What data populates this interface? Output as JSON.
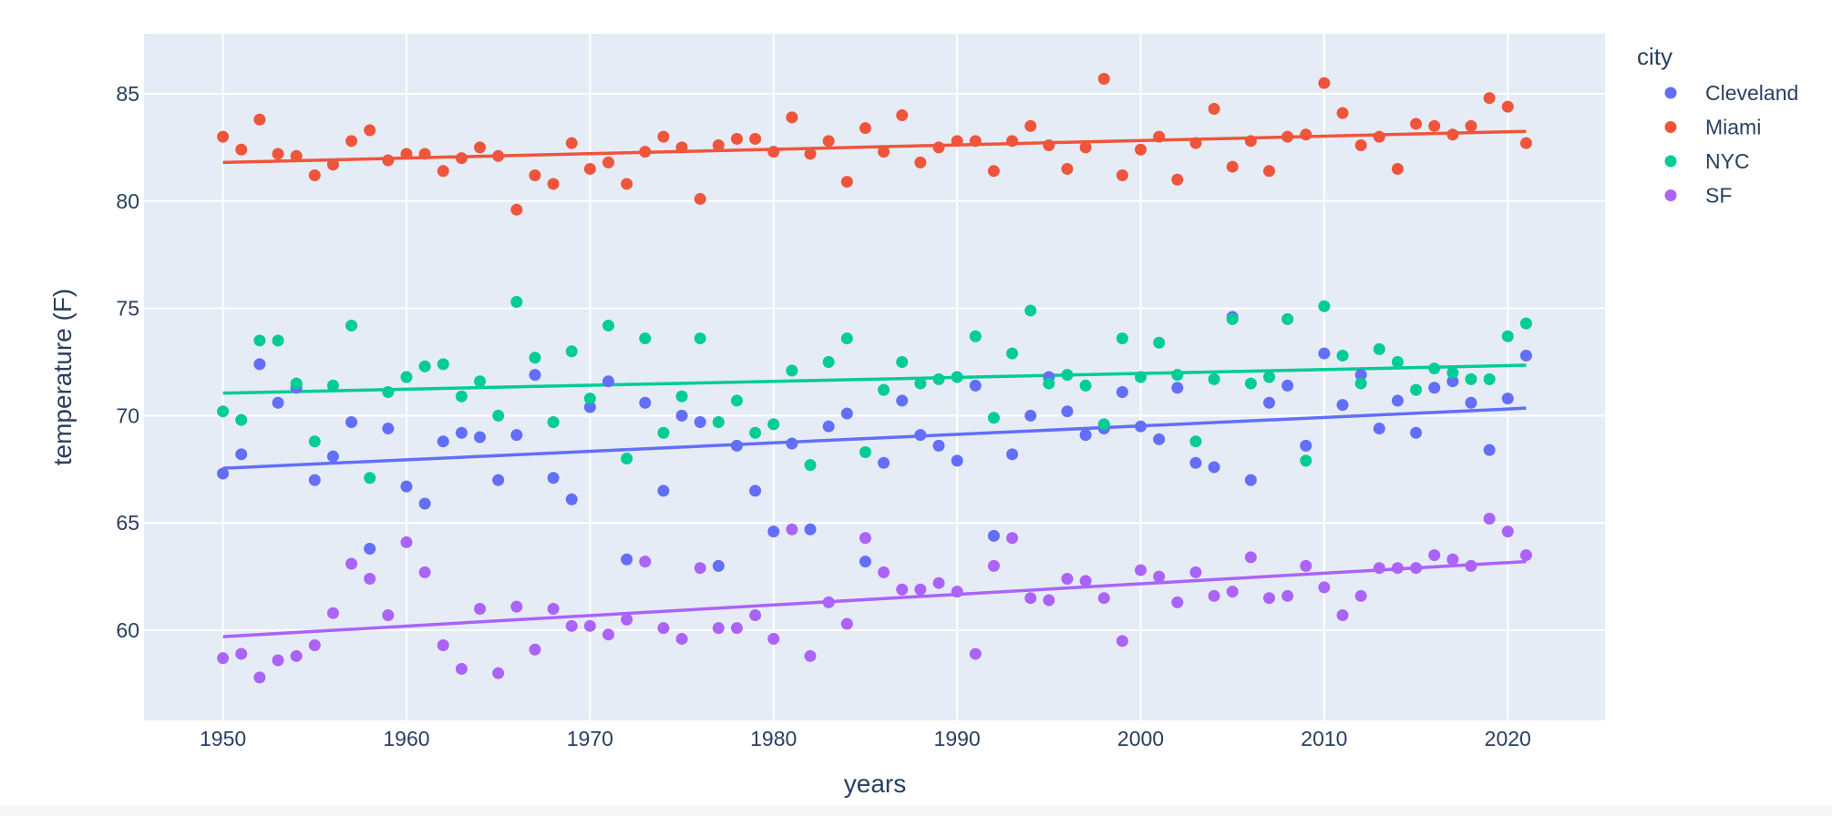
{
  "chart_data": {
    "type": "scatter",
    "xlabel": "years",
    "ylabel": "temperature (F)",
    "legend_title": "city",
    "legend_position": "top-right",
    "grid": true,
    "xlim": [
      1945.7,
      2025.3
    ],
    "ylim": [
      55.8,
      87.8
    ],
    "x_ticks": [
      1950,
      1960,
      1970,
      1980,
      1990,
      2000,
      2010,
      2020
    ],
    "y_ticks": [
      60,
      65,
      70,
      75,
      80,
      85
    ],
    "colors": {
      "plot_bg": "#e5ecf6",
      "grid": "#ffffff",
      "text": "#2a3f5f",
      "Cleveland": "#636efa",
      "Miami": "#ef553b",
      "NYC": "#00cc96",
      "SF": "#ab63fa"
    },
    "x": [
      1950,
      1951,
      1952,
      1953,
      1954,
      1955,
      1956,
      1957,
      1958,
      1959,
      1960,
      1961,
      1962,
      1963,
      1964,
      1965,
      1966,
      1967,
      1968,
      1969,
      1970,
      1971,
      1972,
      1973,
      1974,
      1975,
      1976,
      1977,
      1978,
      1979,
      1980,
      1981,
      1982,
      1983,
      1984,
      1985,
      1986,
      1987,
      1988,
      1989,
      1990,
      1991,
      1992,
      1993,
      1994,
      1995,
      1996,
      1997,
      1998,
      1999,
      2000,
      2001,
      2002,
      2003,
      2004,
      2005,
      2006,
      2007,
      2008,
      2009,
      2010,
      2011,
      2012,
      2013,
      2014,
      2015,
      2016,
      2017,
      2018,
      2019,
      2020,
      2021
    ],
    "series": [
      {
        "name": "Cleveland",
        "color": "#636efa",
        "trend": [
          67.55,
          70.35
        ],
        "values": [
          67.3,
          68.2,
          72.4,
          70.6,
          71.3,
          67.0,
          68.1,
          69.7,
          63.8,
          69.4,
          66.7,
          65.9,
          68.8,
          69.2,
          69.0,
          67.0,
          69.1,
          71.9,
          67.1,
          66.1,
          70.4,
          71.6,
          63.3,
          70.6,
          66.5,
          70.0,
          69.7,
          63.0,
          68.6,
          66.5,
          64.6,
          68.7,
          64.7,
          69.5,
          70.1,
          63.2,
          67.8,
          70.7,
          69.1,
          68.6,
          67.9,
          71.4,
          64.4,
          68.2,
          70.0,
          71.8,
          70.2,
          69.1,
          69.4,
          71.1,
          69.5,
          68.9,
          71.3,
          67.8,
          67.6,
          74.6,
          67.0,
          70.6,
          71.4,
          68.6,
          72.9,
          70.5,
          71.9,
          69.4,
          70.7,
          69.2,
          71.3,
          71.6,
          70.6,
          68.4,
          70.8,
          72.8
        ]
      },
      {
        "name": "Miami",
        "color": "#ef553b",
        "trend": [
          81.8,
          83.25
        ],
        "values": [
          83.0,
          82.4,
          83.8,
          82.2,
          82.1,
          81.2,
          81.7,
          82.8,
          83.3,
          81.9,
          82.2,
          82.2,
          81.4,
          82.0,
          82.5,
          82.1,
          79.6,
          81.2,
          80.8,
          82.7,
          81.5,
          81.8,
          80.8,
          82.3,
          83.0,
          82.5,
          80.1,
          82.6,
          82.9,
          82.9,
          82.3,
          83.9,
          82.2,
          82.8,
          80.9,
          83.4,
          82.3,
          84.0,
          81.8,
          82.5,
          82.8,
          82.8,
          81.4,
          82.8,
          83.5,
          82.6,
          81.5,
          82.5,
          85.7,
          81.2,
          82.4,
          83.0,
          81.0,
          82.7,
          84.3,
          81.6,
          82.8,
          81.4,
          83.0,
          83.1,
          85.5,
          84.1,
          82.6,
          83.0,
          81.5,
          83.6,
          83.5,
          83.1,
          83.5,
          84.8,
          84.4,
          82.7
        ]
      },
      {
        "name": "NYC",
        "color": "#00cc96",
        "trend": [
          71.05,
          72.35
        ],
        "values": [
          70.2,
          69.8,
          73.5,
          73.5,
          71.5,
          68.8,
          71.4,
          74.2,
          67.1,
          71.1,
          71.8,
          72.3,
          72.4,
          70.9,
          71.6,
          70.0,
          75.3,
          72.7,
          69.7,
          73.0,
          70.8,
          74.2,
          68.0,
          73.6,
          69.2,
          70.9,
          73.6,
          69.7,
          70.7,
          69.2,
          69.6,
          72.1,
          67.7,
          72.5,
          73.6,
          68.3,
          71.2,
          72.5,
          71.5,
          71.7,
          71.8,
          73.7,
          69.9,
          72.9,
          74.9,
          71.5,
          71.9,
          71.4,
          69.6,
          73.6,
          71.8,
          73.4,
          71.9,
          68.8,
          71.7,
          74.5,
          71.5,
          71.8,
          74.5,
          67.9,
          75.1,
          72.8,
          71.5,
          73.1,
          72.5,
          71.2,
          72.2,
          72.0,
          71.7,
          71.7,
          73.7,
          74.3
        ]
      },
      {
        "name": "SF",
        "color": "#ab63fa",
        "trend": [
          59.7,
          63.2
        ],
        "values": [
          58.7,
          58.9,
          57.8,
          58.6,
          58.8,
          59.3,
          60.8,
          63.1,
          62.4,
          60.7,
          64.1,
          62.7,
          59.3,
          58.2,
          61.0,
          58.0,
          61.1,
          59.1,
          61.0,
          60.2,
          60.2,
          59.8,
          60.5,
          63.2,
          60.1,
          59.6,
          62.9,
          60.1,
          60.1,
          60.7,
          59.6,
          64.7,
          58.8,
          61.3,
          60.3,
          64.3,
          62.7,
          61.9,
          61.9,
          62.2,
          61.8,
          58.9,
          63.0,
          64.3,
          61.5,
          61.4,
          62.4,
          62.3,
          61.5,
          59.5,
          62.8,
          62.5,
          61.3,
          62.7,
          61.6,
          61.8,
          63.4,
          61.5,
          61.6,
          63.0,
          62.0,
          60.7,
          61.6,
          62.9,
          62.9,
          62.9,
          63.5,
          63.3,
          63.0,
          65.2,
          64.6,
          63.5
        ]
      }
    ]
  }
}
